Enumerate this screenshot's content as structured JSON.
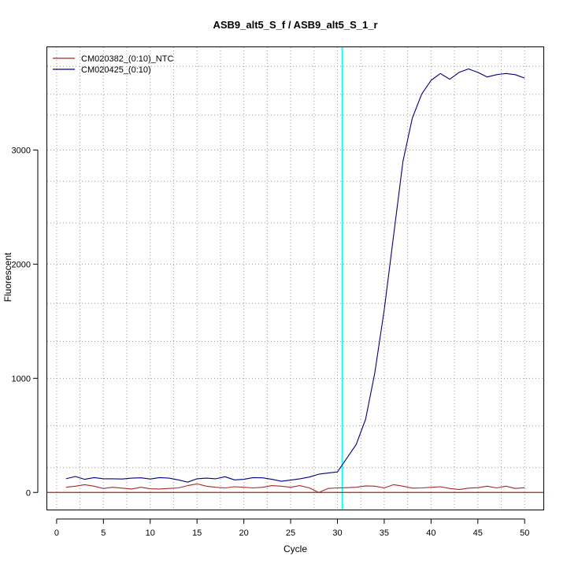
{
  "chart_data": {
    "type": "line",
    "title": "ASB9_alt5_S_f / ASB9_alt5_S_1_r",
    "xlabel": "Cycle",
    "ylabel": "Fluorescent",
    "xlim": [
      -1,
      52
    ],
    "ylim": [
      -150,
      3900
    ],
    "x_ticks": [
      0,
      5,
      10,
      15,
      20,
      25,
      30,
      35,
      40,
      45,
      50
    ],
    "y_ticks": [
      0,
      1000,
      2000,
      3000
    ],
    "x_grid": [
      0,
      2.5,
      5,
      7.5,
      10,
      12.5,
      15,
      17.5,
      20,
      22.5,
      25,
      27.5,
      30,
      32.5,
      35,
      37.5,
      40,
      42.5,
      45,
      47.5,
      50
    ],
    "y_grid": [
      0,
      217,
      583,
      1000,
      1323,
      1656,
      2000,
      2361,
      2725,
      3000,
      3306,
      3488,
      3733
    ],
    "grid": true,
    "legend_position": "top-left",
    "threshold": {
      "x": 30.5,
      "color": "#00ffff"
    },
    "baseline": {
      "y": 0,
      "color": "#a52a2a"
    },
    "series": [
      {
        "name": "CM020382_(0:10)_NTC",
        "color": "#a52a2a",
        "x": [
          1,
          2,
          3,
          4,
          5,
          6,
          7,
          8,
          9,
          10,
          11,
          12,
          13,
          14,
          15,
          16,
          17,
          18,
          19,
          20,
          21,
          22,
          23,
          24,
          25,
          26,
          27,
          28,
          29,
          30,
          31,
          32,
          33,
          34,
          35,
          36,
          37,
          38,
          39,
          40,
          41,
          42,
          43,
          44,
          45,
          46,
          47,
          48,
          49,
          50
        ],
        "values": [
          45,
          55,
          68,
          55,
          35,
          45,
          38,
          30,
          45,
          32,
          30,
          35,
          40,
          60,
          75,
          55,
          45,
          40,
          50,
          45,
          40,
          45,
          60,
          55,
          45,
          60,
          40,
          0,
          35,
          40,
          42,
          45,
          58,
          55,
          40,
          68,
          55,
          38,
          40,
          45,
          50,
          35,
          25,
          38,
          42,
          55,
          40,
          55,
          35,
          42
        ]
      },
      {
        "name": "CM020425_(0:10)",
        "color": "#00008b",
        "x": [
          1,
          2,
          3,
          4,
          5,
          6,
          7,
          8,
          9,
          10,
          11,
          12,
          13,
          14,
          15,
          16,
          17,
          18,
          19,
          20,
          21,
          22,
          23,
          24,
          25,
          26,
          27,
          28,
          29,
          30,
          31,
          32,
          33,
          34,
          35,
          36,
          37,
          38,
          39,
          40,
          41,
          42,
          43,
          44,
          45,
          46,
          47,
          48,
          49,
          50
        ],
        "values": [
          120,
          140,
          115,
          130,
          120,
          120,
          118,
          125,
          128,
          118,
          130,
          125,
          110,
          90,
          120,
          125,
          120,
          138,
          110,
          115,
          130,
          128,
          115,
          98,
          108,
          120,
          135,
          160,
          170,
          180,
          300,
          420,
          640,
          1050,
          1600,
          2250,
          2900,
          3280,
          3490,
          3610,
          3670,
          3620,
          3680,
          3710,
          3680,
          3640,
          3660,
          3670,
          3660,
          3630
        ]
      }
    ]
  }
}
